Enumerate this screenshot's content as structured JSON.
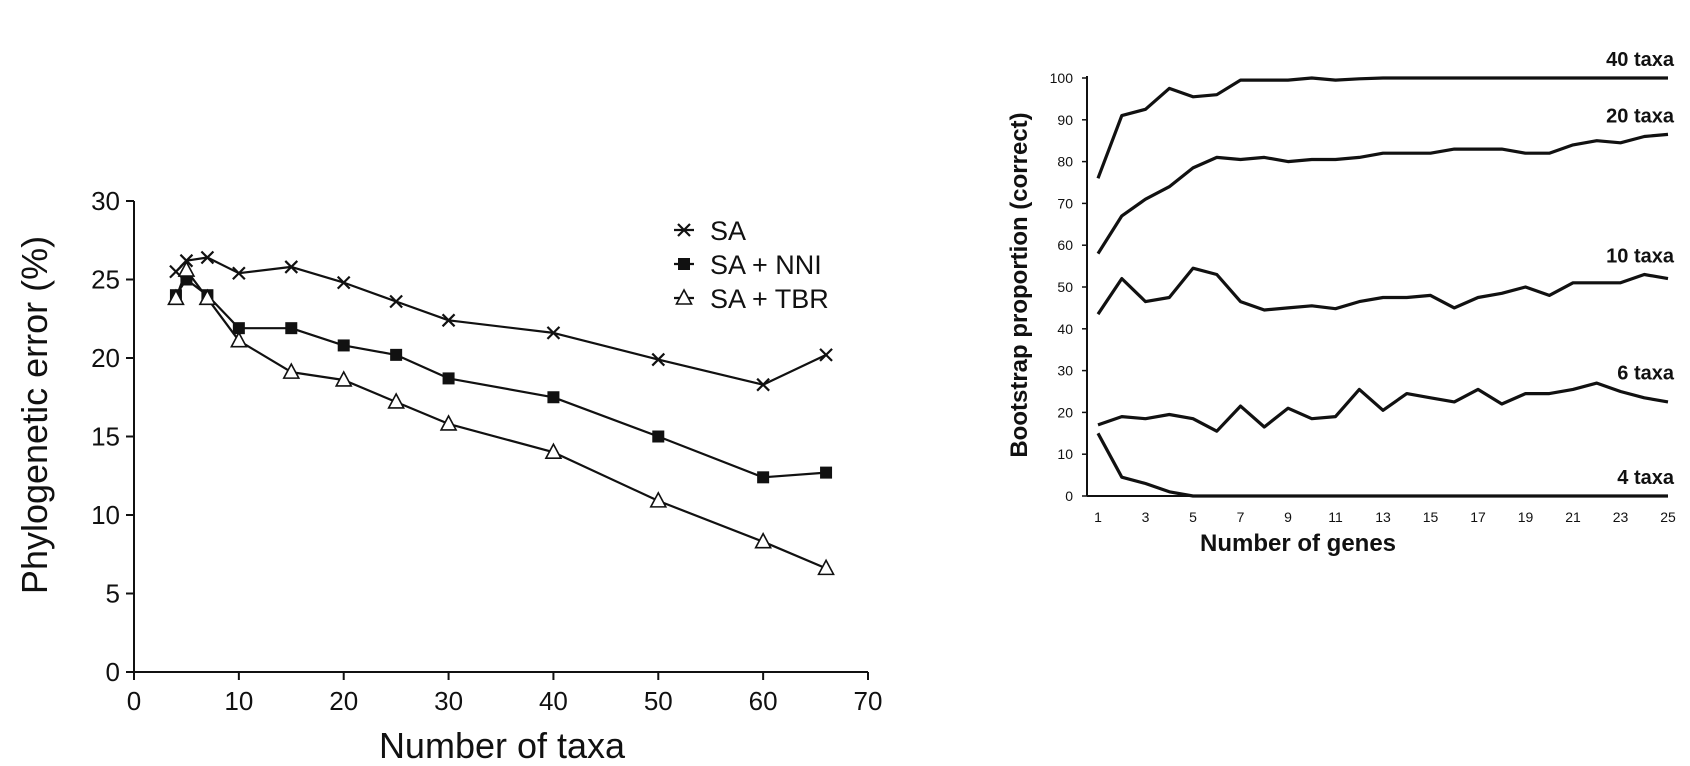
{
  "chart_data": [
    {
      "type": "line",
      "title": "",
      "xlabel": "Number of taxa",
      "ylabel": "Phylogenetic error (%)",
      "xlim": [
        0,
        70
      ],
      "ylim": [
        0,
        30
      ],
      "xticks": [
        0,
        10,
        20,
        30,
        40,
        50,
        60,
        70
      ],
      "yticks": [
        0,
        5,
        10,
        15,
        20,
        25,
        30
      ],
      "grid": false,
      "legend_position": "top-right",
      "series": [
        {
          "name": "SA",
          "marker": "x",
          "x": [
            4,
            5,
            7,
            10,
            15,
            20,
            25,
            30,
            40,
            50,
            60,
            66
          ],
          "y": [
            25.5,
            26.2,
            26.4,
            25.4,
            25.8,
            24.8,
            23.6,
            22.4,
            21.6,
            19.9,
            18.3,
            20.2
          ]
        },
        {
          "name": "SA + NNI",
          "marker": "filled-square",
          "x": [
            4,
            5,
            7,
            10,
            15,
            20,
            25,
            30,
            40,
            50,
            60,
            66
          ],
          "y": [
            24.0,
            25.0,
            24.0,
            21.9,
            21.9,
            20.8,
            20.2,
            18.7,
            17.5,
            15.0,
            12.4,
            12.7
          ]
        },
        {
          "name": "SA + TBR",
          "marker": "open-triangle",
          "x": [
            4,
            5,
            7,
            10,
            15,
            20,
            25,
            30,
            40,
            50,
            60,
            66
          ],
          "y": [
            23.8,
            25.6,
            23.8,
            21.1,
            19.1,
            18.6,
            17.2,
            15.8,
            14.0,
            10.9,
            8.3,
            6.6
          ]
        }
      ]
    },
    {
      "type": "line",
      "title": "",
      "xlabel": "Number of genes",
      "ylabel": "Bootstrap proportion (correct)",
      "xlim": [
        1,
        25
      ],
      "ylim": [
        0,
        100
      ],
      "xticks": [
        1,
        3,
        5,
        7,
        9,
        11,
        13,
        15,
        17,
        19,
        21,
        23,
        25
      ],
      "yticks": [
        0,
        10,
        20,
        30,
        40,
        50,
        60,
        70,
        80,
        90,
        100
      ],
      "grid": false,
      "series": [
        {
          "name": "40 taxa",
          "x": [
            1,
            2,
            3,
            4,
            5,
            6,
            7,
            8,
            9,
            10,
            11,
            12,
            13,
            14,
            15,
            16,
            17,
            18,
            19,
            20,
            21,
            22,
            23,
            24,
            25
          ],
          "y": [
            76,
            91,
            92.5,
            97.5,
            95.5,
            96,
            99.5,
            99.5,
            99.5,
            100,
            99.5,
            99.8,
            100,
            100,
            100,
            100,
            100,
            100,
            100,
            100,
            100,
            100,
            100,
            100,
            100
          ]
        },
        {
          "name": "20 taxa",
          "x": [
            1,
            2,
            3,
            4,
            5,
            6,
            7,
            8,
            9,
            10,
            11,
            12,
            13,
            14,
            15,
            16,
            17,
            18,
            19,
            20,
            21,
            22,
            23,
            24,
            25
          ],
          "y": [
            58,
            67,
            71,
            74,
            78.5,
            81,
            80.5,
            81,
            80,
            80.5,
            80.5,
            81,
            82,
            82,
            82,
            83,
            83,
            83,
            82,
            82,
            84,
            85,
            84.5,
            86,
            86.5
          ]
        },
        {
          "name": "10 taxa",
          "x": [
            1,
            2,
            3,
            4,
            5,
            6,
            7,
            8,
            9,
            10,
            11,
            12,
            13,
            14,
            15,
            16,
            17,
            18,
            19,
            20,
            21,
            22,
            23,
            24,
            25
          ],
          "y": [
            43.5,
            52,
            46.5,
            47.5,
            54.5,
            53,
            46.5,
            44.5,
            45,
            45.5,
            44.8,
            46.5,
            47.5,
            47.5,
            48,
            45,
            47.5,
            48.5,
            50,
            48,
            51,
            51,
            51,
            53,
            52
          ]
        },
        {
          "name": "6 taxa",
          "x": [
            1,
            2,
            3,
            4,
            5,
            6,
            7,
            8,
            9,
            10,
            11,
            12,
            13,
            14,
            15,
            16,
            17,
            18,
            19,
            20,
            21,
            22,
            23,
            24,
            25
          ],
          "y": [
            17,
            19,
            18.5,
            19.5,
            18.5,
            15.5,
            21.5,
            16.5,
            21,
            18.5,
            19,
            25.5,
            20.5,
            24.5,
            23.5,
            22.5,
            25.5,
            22,
            24.5,
            24.5,
            25.5,
            27,
            25,
            23.5,
            22.5
          ]
        },
        {
          "name": "4 taxa",
          "x": [
            1,
            2,
            3,
            4,
            5,
            6,
            7,
            8,
            9,
            10,
            11,
            12,
            13,
            14,
            15,
            16,
            17,
            18,
            19,
            20,
            21,
            22,
            23,
            24,
            25
          ],
          "y": [
            15,
            4.5,
            3,
            1,
            0,
            0,
            0,
            0,
            0,
            0,
            0,
            0,
            0,
            0,
            0,
            0,
            0,
            0,
            0,
            0,
            0,
            0,
            0,
            0,
            0
          ]
        }
      ]
    }
  ]
}
